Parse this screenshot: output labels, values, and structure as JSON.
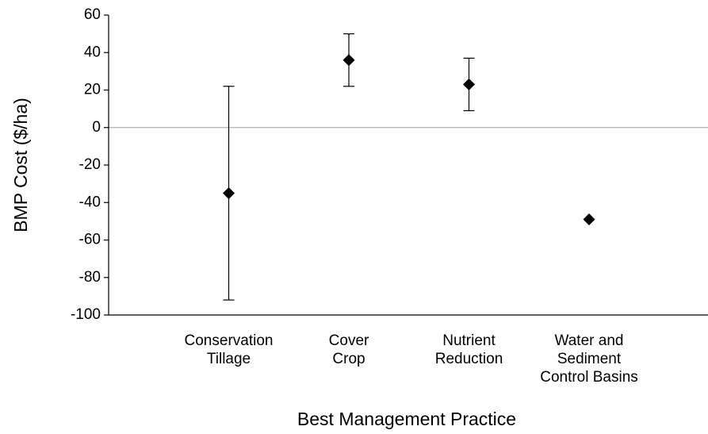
{
  "chart_data": {
    "type": "errorbar",
    "x_label": "Best Management Practice",
    "y_label": "BMP Cost ($/ha)",
    "categories": [
      "Conservation\nTillage",
      "Cover\nCrop",
      "Nutrient\nReduction",
      "Water and\nSediment\nControl Basins"
    ],
    "series": [
      {
        "color": "#000000",
        "values": [
          -35,
          36,
          23,
          -49
        ],
        "errors": [
          57,
          14,
          14,
          null
        ]
      }
    ],
    "ylim": [
      -100,
      60
    ],
    "yticks": [
      -100,
      -80,
      -60,
      -40,
      -20,
      0,
      20,
      40,
      60
    ],
    "zero_line": true
  }
}
